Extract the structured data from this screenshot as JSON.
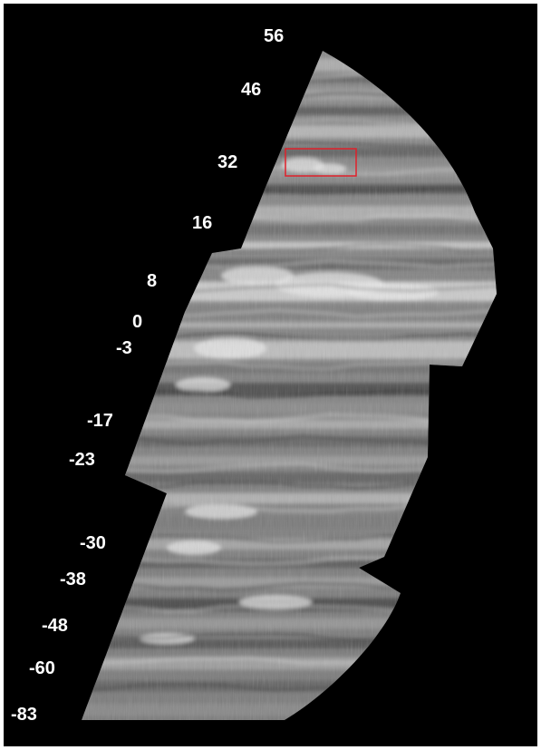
{
  "image": {
    "description_ref": "latitude-mosaic",
    "background_color": "#000000",
    "label_color": "#ffffff",
    "highlight_color": "#e0202a"
  },
  "latitude_labels": [
    {
      "id": "lat-56",
      "text": "56"
    },
    {
      "id": "lat-46",
      "text": "46"
    },
    {
      "id": "lat-32",
      "text": "32"
    },
    {
      "id": "lat-16",
      "text": "16"
    },
    {
      "id": "lat-8",
      "text": "8"
    },
    {
      "id": "lat-0",
      "text": "0"
    },
    {
      "id": "lat-neg3",
      "text": "-3"
    },
    {
      "id": "lat-neg17",
      "text": "-17"
    },
    {
      "id": "lat-neg23",
      "text": "-23"
    },
    {
      "id": "lat-neg30",
      "text": "-30"
    },
    {
      "id": "lat-neg38",
      "text": "-38"
    },
    {
      "id": "lat-neg48",
      "text": "-48"
    },
    {
      "id": "lat-neg60",
      "text": "-60"
    },
    {
      "id": "lat-neg83",
      "text": "-83"
    }
  ]
}
